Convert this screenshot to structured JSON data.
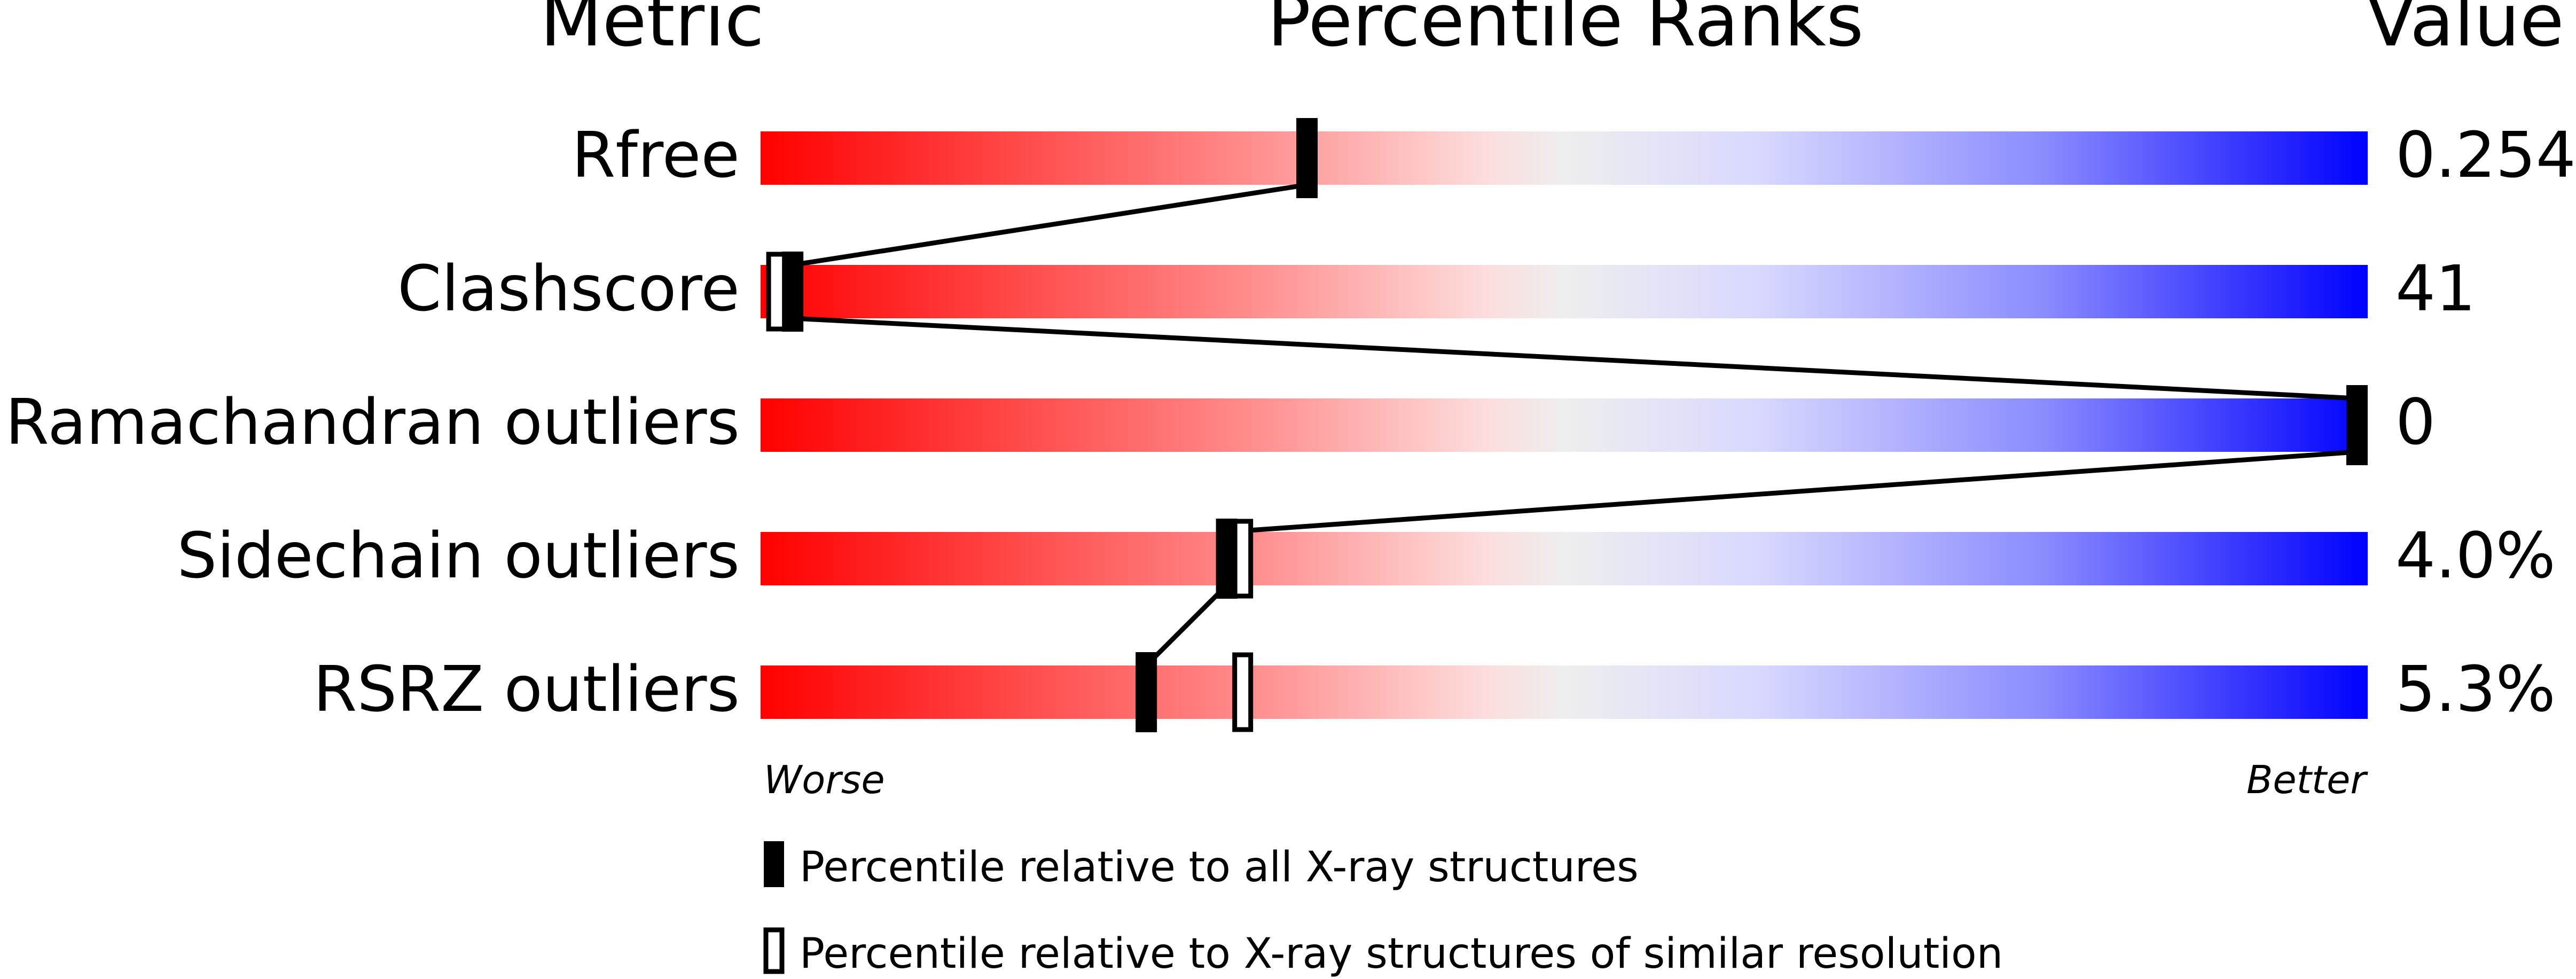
{
  "chart_data": {
    "type": "bar",
    "headers": {
      "metric": "Metric",
      "percentile": "Percentile Ranks",
      "value": "Value"
    },
    "categories": [
      "Rfree",
      "Clashscore",
      "Ramachandran outliers",
      "Sidechain outliers",
      "RSRZ outliers"
    ],
    "values": [
      "0.254",
      "41",
      "0",
      "4.0%",
      "5.3%"
    ],
    "series": [
      {
        "name": "Percentile relative to all X-ray structures",
        "marker": "filled",
        "percentiles": [
          34,
          2,
          100,
          29,
          24
        ]
      },
      {
        "name": "Percentile relative to X-ray structures of similar resolution",
        "marker": "open",
        "percentiles": [
          null,
          1,
          null,
          30,
          30
        ]
      }
    ],
    "xlim": [
      0,
      100
    ],
    "axis_labels": {
      "left": "Worse",
      "right": "Better"
    },
    "gradient_colors": [
      "#ff0000",
      "#fddcdc",
      "#eeeeee",
      "#d8d8ff",
      "#0000ff"
    ]
  }
}
